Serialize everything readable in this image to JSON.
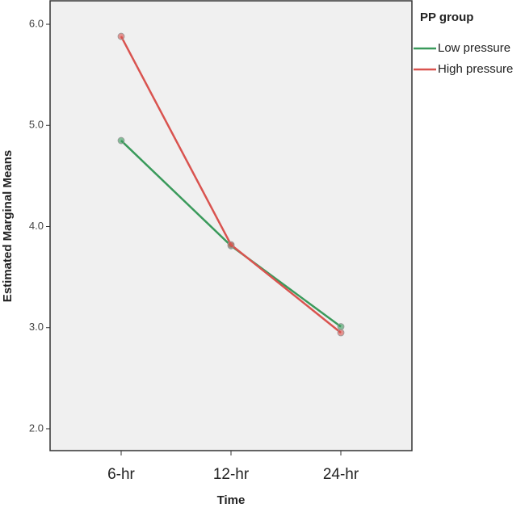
{
  "chart_data": {
    "type": "line",
    "x_label": "Time",
    "y_label": "Estimated Marginal Means",
    "legend_title": "PP group",
    "legend_position": "right",
    "categories": [
      "6-hr",
      "12-hr",
      "24-hr"
    ],
    "series": [
      {
        "name": "Low pressure",
        "color": "#3a9a5b",
        "values": [
          4.85,
          3.81,
          3.01
        ]
      },
      {
        "name": "High pressure",
        "color": "#d9534f",
        "values": [
          5.88,
          3.82,
          2.95
        ]
      }
    ],
    "ylim": [
      1.8,
      6.2
    ],
    "yticks": [
      {
        "value": 2,
        "label": "2.0"
      },
      {
        "value": 3,
        "label": "3.0"
      },
      {
        "value": 4,
        "label": "4.0"
      },
      {
        "value": 5,
        "label": "5.0"
      },
      {
        "value": 6,
        "label": "6.0"
      }
    ],
    "grid": false
  }
}
